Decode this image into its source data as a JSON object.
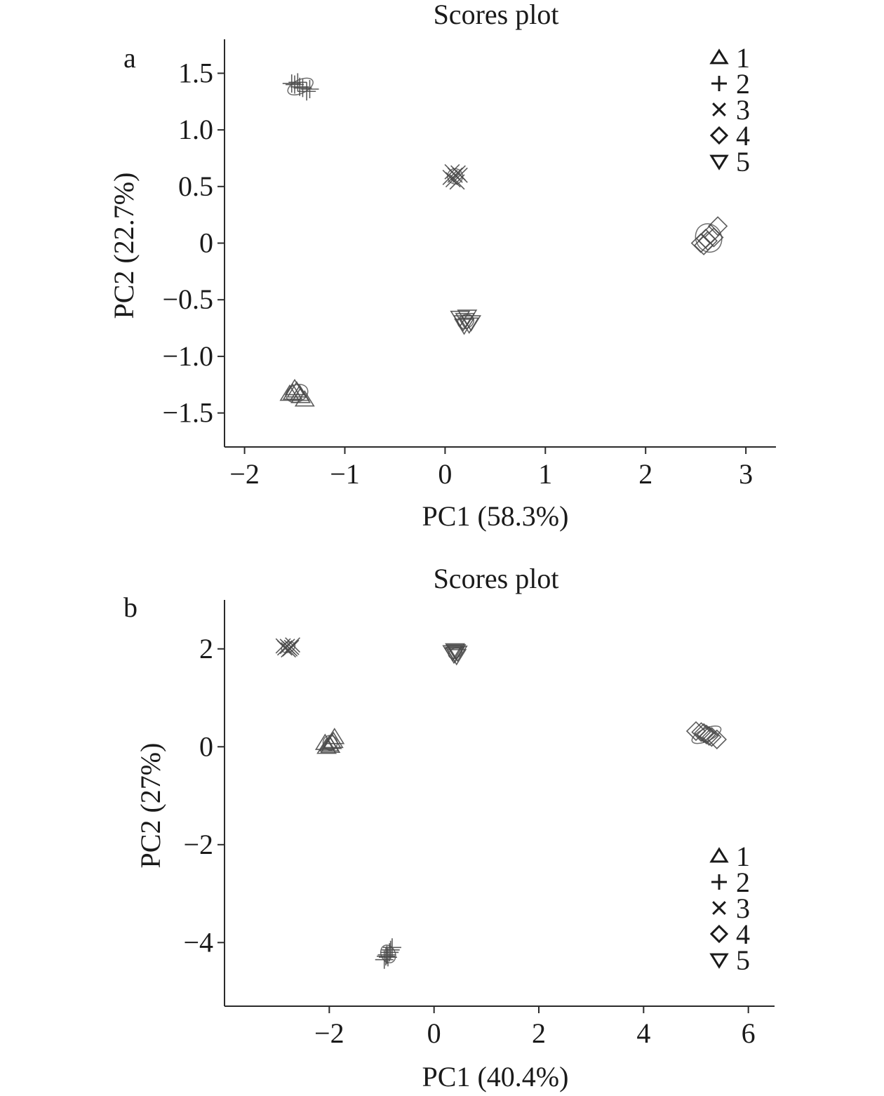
{
  "chart_data": [
    {
      "type": "scatter",
      "panel": "a",
      "title": "Scores plot",
      "xlabel": "PC1 (58.3%)",
      "ylabel": "PC2 (22.7%)",
      "xlim": [
        -2.2,
        3.3
      ],
      "ylim": [
        -1.8,
        1.8
      ],
      "xticks": [
        -2,
        -1,
        0,
        1,
        2,
        3
      ],
      "xtick_labels": [
        "−2",
        "−1",
        "0",
        "1",
        "2",
        "3"
      ],
      "yticks": [
        1.5,
        1.0,
        0.5,
        0,
        -0.5,
        -1.0,
        -1.5
      ],
      "ytick_labels": [
        "1.5",
        "1.0",
        "0.5",
        "0",
        "−0.5",
        "−1.0",
        "−1.5"
      ],
      "grid": false,
      "legend_position": "top-right",
      "legend": [
        "1",
        "2",
        "3",
        "4",
        "5"
      ],
      "series": [
        {
          "name": "1",
          "marker": "triangle-up",
          "points": [
            [
              -1.48,
              -1.3
            ],
            [
              -1.45,
              -1.33
            ],
            [
              -1.52,
              -1.32
            ],
            [
              -1.4,
              -1.38
            ],
            [
              -1.5,
              -1.28
            ],
            [
              -1.44,
              -1.35
            ],
            [
              -1.55,
              -1.33
            ]
          ]
        },
        {
          "name": "2",
          "marker": "plus",
          "points": [
            [
              -1.5,
              1.4
            ],
            [
              -1.45,
              1.38
            ],
            [
              -1.38,
              1.34
            ],
            [
              -1.42,
              1.37
            ],
            [
              -1.53,
              1.41
            ],
            [
              -1.35,
              1.36
            ],
            [
              -1.47,
              1.42
            ]
          ]
        },
        {
          "name": "3",
          "marker": "x",
          "points": [
            [
              0.1,
              0.6
            ],
            [
              0.08,
              0.56
            ],
            [
              0.13,
              0.62
            ],
            [
              0.05,
              0.58
            ],
            [
              0.12,
              0.54
            ],
            [
              0.15,
              0.6
            ],
            [
              0.07,
              0.63
            ]
          ]
        },
        {
          "name": "4",
          "marker": "diamond",
          "points": [
            [
              2.62,
              0.02
            ],
            [
              2.58,
              -0.02
            ],
            [
              2.68,
              0.05
            ],
            [
              2.72,
              0.15
            ],
            [
              2.55,
              0.0
            ],
            [
              2.65,
              0.08
            ],
            [
              2.6,
              0.04
            ]
          ]
        },
        {
          "name": "5",
          "marker": "triangle-down",
          "points": [
            [
              0.2,
              -0.68
            ],
            [
              0.18,
              -0.7
            ],
            [
              0.24,
              -0.72
            ],
            [
              0.15,
              -0.66
            ],
            [
              0.22,
              -0.65
            ],
            [
              0.26,
              -0.7
            ],
            [
              0.19,
              -0.73
            ]
          ]
        }
      ]
    },
    {
      "type": "scatter",
      "panel": "b",
      "title": "Scores plot",
      "xlabel": "PC1 (40.4%)",
      "ylabel": "PC2 (27%)",
      "xlim": [
        -4.0,
        6.5
      ],
      "ylim": [
        -5.3,
        3.0
      ],
      "xticks": [
        -2,
        0,
        2,
        4,
        6
      ],
      "xtick_labels": [
        "−2",
        "0",
        "2",
        "4",
        "6"
      ],
      "yticks": [
        2,
        0,
        -2,
        -4
      ],
      "ytick_labels": [
        "2",
        "0",
        "−2",
        "−4"
      ],
      "grid": false,
      "legend_position": "bottom-right",
      "legend": [
        "1",
        "2",
        "3",
        "4",
        "5"
      ],
      "series": [
        {
          "name": "1",
          "marker": "triangle-up",
          "points": [
            [
              -2.0,
              0.05
            ],
            [
              -1.95,
              0.1
            ],
            [
              -2.05,
              0.0
            ],
            [
              -1.9,
              0.2
            ],
            [
              -1.98,
              0.02
            ],
            [
              -2.08,
              0.08
            ],
            [
              -1.92,
              0.12
            ]
          ]
        },
        {
          "name": "2",
          "marker": "plus",
          "points": [
            [
              -0.9,
              -4.25
            ],
            [
              -0.85,
              -4.2
            ],
            [
              -0.95,
              -4.35
            ],
            [
              -0.8,
              -4.1
            ],
            [
              -0.88,
              -4.3
            ],
            [
              -0.92,
              -4.28
            ],
            [
              -0.83,
              -4.15
            ]
          ]
        },
        {
          "name": "3",
          "marker": "x",
          "points": [
            [
              -2.8,
              2.05
            ],
            [
              -2.75,
              2.0
            ],
            [
              -2.85,
              2.02
            ],
            [
              -2.7,
              2.08
            ],
            [
              -2.78,
              1.98
            ],
            [
              -2.88,
              2.06
            ],
            [
              -2.72,
              2.03
            ]
          ]
        },
        {
          "name": "4",
          "marker": "diamond",
          "points": [
            [
              5.1,
              0.3
            ],
            [
              5.2,
              0.25
            ],
            [
              5.3,
              0.2
            ],
            [
              5.0,
              0.32
            ],
            [
              5.25,
              0.22
            ],
            [
              5.4,
              0.15
            ],
            [
              5.15,
              0.28
            ]
          ]
        },
        {
          "name": "5",
          "marker": "triangle-down",
          "points": [
            [
              0.4,
              1.9
            ],
            [
              0.42,
              1.95
            ],
            [
              0.38,
              1.88
            ],
            [
              0.45,
              1.92
            ],
            [
              0.35,
              1.93
            ],
            [
              0.43,
              1.85
            ],
            [
              0.4,
              1.97
            ]
          ]
        }
      ]
    }
  ]
}
